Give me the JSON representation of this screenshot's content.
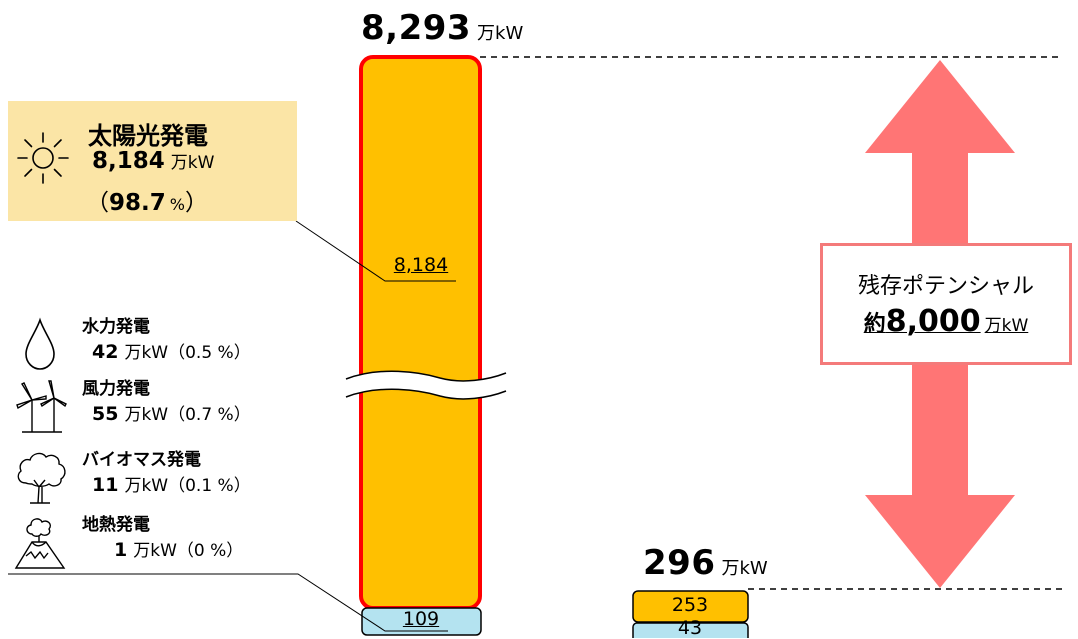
{
  "chart_data": {
    "type": "bar",
    "title": "",
    "xlabel": "",
    "ylabel": "",
    "unit": "万kW",
    "axis_break": true,
    "bars": [
      {
        "total": "8,293",
        "segments": [
          {
            "label": "8,184",
            "value": 8184,
            "color": "#ffc000"
          },
          {
            "label": "109",
            "value": 109,
            "color": "#b4e3f0"
          }
        ]
      },
      {
        "total": "296",
        "segments": [
          {
            "label": "253",
            "value": 253,
            "color": "#ffc000"
          },
          {
            "label": "43",
            "value": 43,
            "color": "#b4e3f0"
          }
        ]
      }
    ],
    "sources": [
      {
        "name": "太陽光発電",
        "value": "8,184",
        "share": "98.7",
        "share_unit": "%",
        "icon": "sun-icon"
      },
      {
        "name": "水力発電",
        "value": "42",
        "share_text": "（0.5 %）",
        "icon": "water-drop-icon"
      },
      {
        "name": "風力発電",
        "value": "55",
        "share_text": "（0.7 %）",
        "icon": "wind-turbine-icon"
      },
      {
        "name": "バイオマス発電",
        "value": "11",
        "share_text": "（0.1 %）",
        "icon": "tree-icon"
      },
      {
        "name": "地熱発電",
        "value": "1",
        "share_text": "（0 %）",
        "icon": "volcano-icon"
      }
    ],
    "remaining": {
      "title": "残存ポテンシャル",
      "prefix": "約",
      "value": "8,000",
      "unit": "万kW"
    },
    "colors": {
      "solar": "#ffc000",
      "other": "#b4e3f0",
      "outline": "#ff0000",
      "arrow": "#ff7575",
      "label_bg": "#fbe5a6"
    }
  }
}
